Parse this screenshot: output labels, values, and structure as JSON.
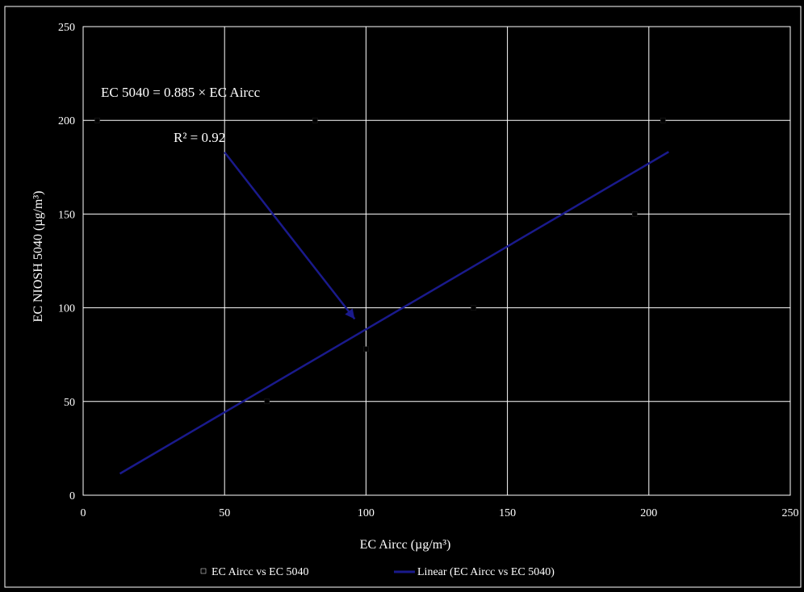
{
  "colors": {
    "background": "#000000",
    "frame": "#ffffff",
    "grid": "#ffffff",
    "text": "#ffffff",
    "trendline": "#1a1a8c",
    "arrow": "#1a1a8c",
    "points": "#000000"
  },
  "chart_data": {
    "type": "scatter",
    "xlabel": "EC Aircc (µg/m³)",
    "ylabel": "EC NIOSH 5040 (µg/m³)",
    "xlim": [
      0,
      250
    ],
    "ylim": [
      0,
      250
    ],
    "xticks": [
      0,
      50,
      100,
      150,
      200,
      250
    ],
    "yticks": [
      0,
      50,
      100,
      150,
      200,
      250
    ],
    "grid": true,
    "legend_position": "bottom",
    "series": [
      {
        "name": "EC Aircc vs EC 5040",
        "kind": "scatter",
        "points": [
          [
            5,
            200
          ],
          [
            82,
            200
          ],
          [
            65,
            50
          ],
          [
            100,
            78
          ],
          [
            138,
            100
          ],
          [
            195,
            150
          ],
          [
            205,
            200
          ]
        ]
      },
      {
        "name": "Linear (EC Aircc vs EC 5040)",
        "kind": "trendline",
        "slope": 0.885,
        "x_range": [
          13,
          207
        ]
      }
    ],
    "annotations": {
      "equation": "EC 5040 = 0.885 × EC Aircc",
      "r_squared": "R² = 0.92",
      "arrow_from": [
        50,
        183
      ],
      "arrow_to": [
        96,
        94
      ]
    }
  }
}
